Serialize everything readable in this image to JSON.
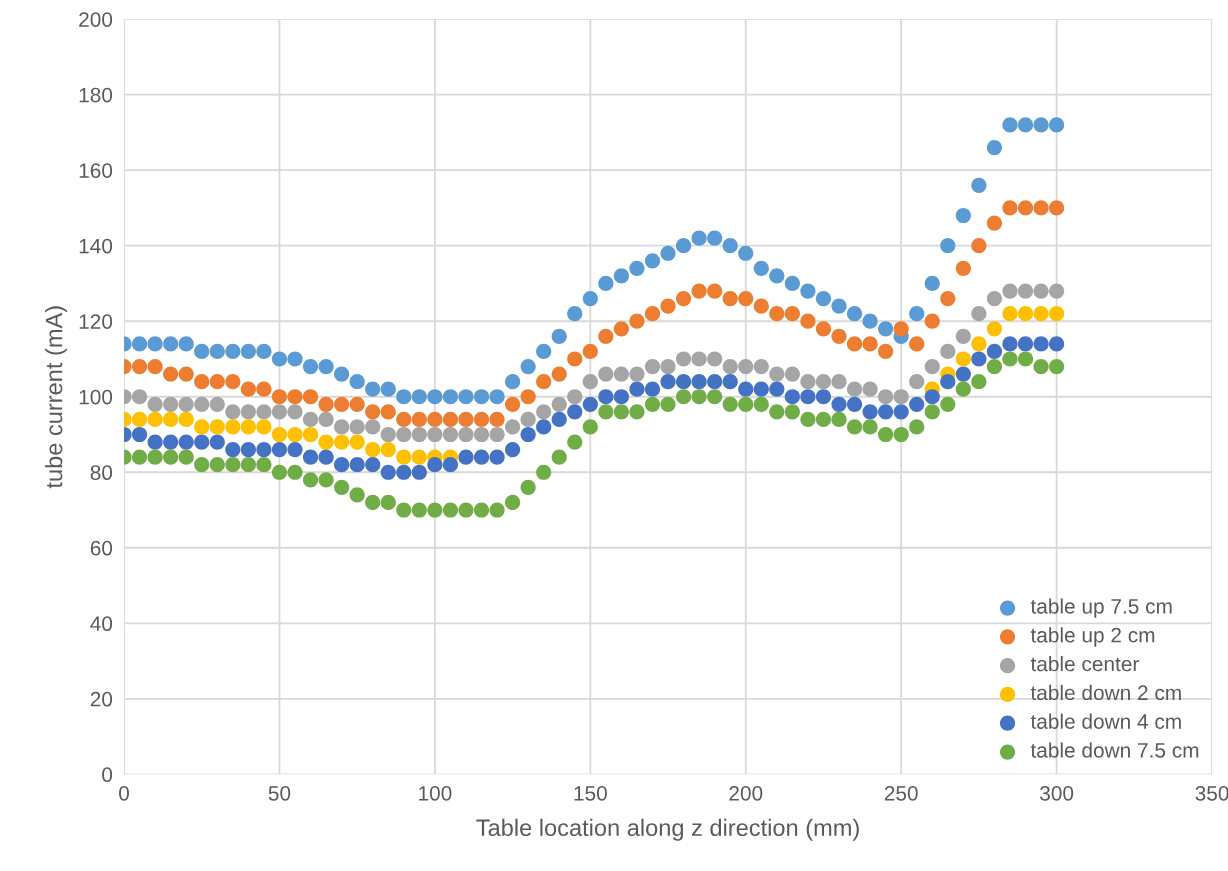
{
  "chart_data": {
    "type": "scatter",
    "xlabel": "Table location along z direction (mm)",
    "ylabel": "tube current (mA)",
    "x": [
      0,
      5,
      10,
      15,
      20,
      25,
      30,
      35,
      40,
      45,
      50,
      55,
      60,
      65,
      70,
      75,
      80,
      85,
      90,
      95,
      100,
      105,
      110,
      115,
      120,
      125,
      130,
      135,
      140,
      145,
      150,
      155,
      160,
      165,
      170,
      175,
      180,
      185,
      190,
      195,
      200,
      205,
      210,
      215,
      220,
      225,
      230,
      235,
      240,
      245,
      250,
      255,
      260,
      265,
      270,
      275,
      280,
      285,
      290,
      295,
      300
    ],
    "series": [
      {
        "name": "table up 7.5 cm",
        "color": "#5b9bd5",
        "values": [
          114,
          114,
          114,
          114,
          114,
          112,
          112,
          112,
          112,
          112,
          110,
          110,
          108,
          108,
          106,
          104,
          102,
          102,
          100,
          100,
          100,
          100,
          100,
          100,
          100,
          104,
          108,
          112,
          116,
          122,
          126,
          130,
          132,
          134,
          136,
          138,
          140,
          142,
          142,
          140,
          138,
          134,
          132,
          130,
          128,
          126,
          124,
          122,
          120,
          118,
          116,
          122,
          130,
          140,
          148,
          156,
          166,
          172,
          172,
          172,
          172
        ]
      },
      {
        "name": "table up 2 cm",
        "color": "#ed7d31",
        "values": [
          108,
          108,
          108,
          106,
          106,
          104,
          104,
          104,
          102,
          102,
          100,
          100,
          100,
          98,
          98,
          98,
          96,
          96,
          94,
          94,
          94,
          94,
          94,
          94,
          94,
          98,
          100,
          104,
          106,
          110,
          112,
          116,
          118,
          120,
          122,
          124,
          126,
          128,
          128,
          126,
          126,
          124,
          122,
          122,
          120,
          118,
          116,
          114,
          114,
          112,
          118,
          114,
          120,
          126,
          134,
          140,
          146,
          150,
          150,
          150,
          150
        ]
      },
      {
        "name": "table center",
        "color": "#a5a5a5",
        "values": [
          100,
          100,
          98,
          98,
          98,
          98,
          98,
          96,
          96,
          96,
          96,
          96,
          94,
          94,
          92,
          92,
          92,
          90,
          90,
          90,
          90,
          90,
          90,
          90,
          90,
          92,
          94,
          96,
          98,
          100,
          104,
          106,
          106,
          106,
          108,
          108,
          110,
          110,
          110,
          108,
          108,
          108,
          106,
          106,
          104,
          104,
          104,
          102,
          102,
          100,
          100,
          104,
          108,
          112,
          116,
          122,
          126,
          128,
          128,
          128,
          128
        ]
      },
      {
        "name": "table down 2 cm",
        "color": "#ffc000",
        "values": [
          94,
          94,
          94,
          94,
          94,
          92,
          92,
          92,
          92,
          92,
          90,
          90,
          90,
          88,
          88,
          88,
          86,
          86,
          84,
          84,
          84,
          84,
          null,
          null,
          null,
          null,
          null,
          null,
          null,
          null,
          null,
          null,
          null,
          null,
          null,
          null,
          null,
          null,
          null,
          null,
          null,
          null,
          null,
          null,
          null,
          null,
          null,
          null,
          null,
          null,
          null,
          null,
          102,
          106,
          110,
          114,
          118,
          122,
          122,
          122,
          122
        ]
      },
      {
        "name": "table down 4 cm",
        "color": "#4472c4",
        "values": [
          90,
          90,
          88,
          88,
          88,
          88,
          88,
          86,
          86,
          86,
          86,
          86,
          84,
          84,
          82,
          82,
          82,
          80,
          80,
          80,
          82,
          82,
          84,
          84,
          84,
          86,
          90,
          92,
          94,
          96,
          98,
          100,
          100,
          102,
          102,
          104,
          104,
          104,
          104,
          104,
          102,
          102,
          102,
          100,
          100,
          100,
          98,
          98,
          96,
          96,
          96,
          98,
          100,
          104,
          106,
          110,
          112,
          114,
          114,
          114,
          114
        ]
      },
      {
        "name": "table down 7.5 cm",
        "color": "#70ad47",
        "values": [
          84,
          84,
          84,
          84,
          84,
          82,
          82,
          82,
          82,
          82,
          80,
          80,
          78,
          78,
          76,
          74,
          72,
          72,
          70,
          70,
          70,
          70,
          70,
          70,
          70,
          72,
          76,
          80,
          84,
          88,
          92,
          96,
          96,
          96,
          98,
          98,
          100,
          100,
          100,
          98,
          98,
          98,
          96,
          96,
          94,
          94,
          94,
          92,
          92,
          90,
          90,
          92,
          96,
          98,
          102,
          104,
          108,
          110,
          110,
          108,
          108
        ]
      }
    ],
    "xlim": [
      0,
      350
    ],
    "xticks": [
      0,
      50,
      100,
      150,
      200,
      250,
      300,
      350
    ],
    "ylim": [
      0,
      200
    ],
    "yticks": [
      0,
      20,
      40,
      60,
      80,
      100,
      120,
      140,
      160,
      180,
      200
    ],
    "grid": true,
    "legend": "bottom right",
    "marker": "circle"
  }
}
